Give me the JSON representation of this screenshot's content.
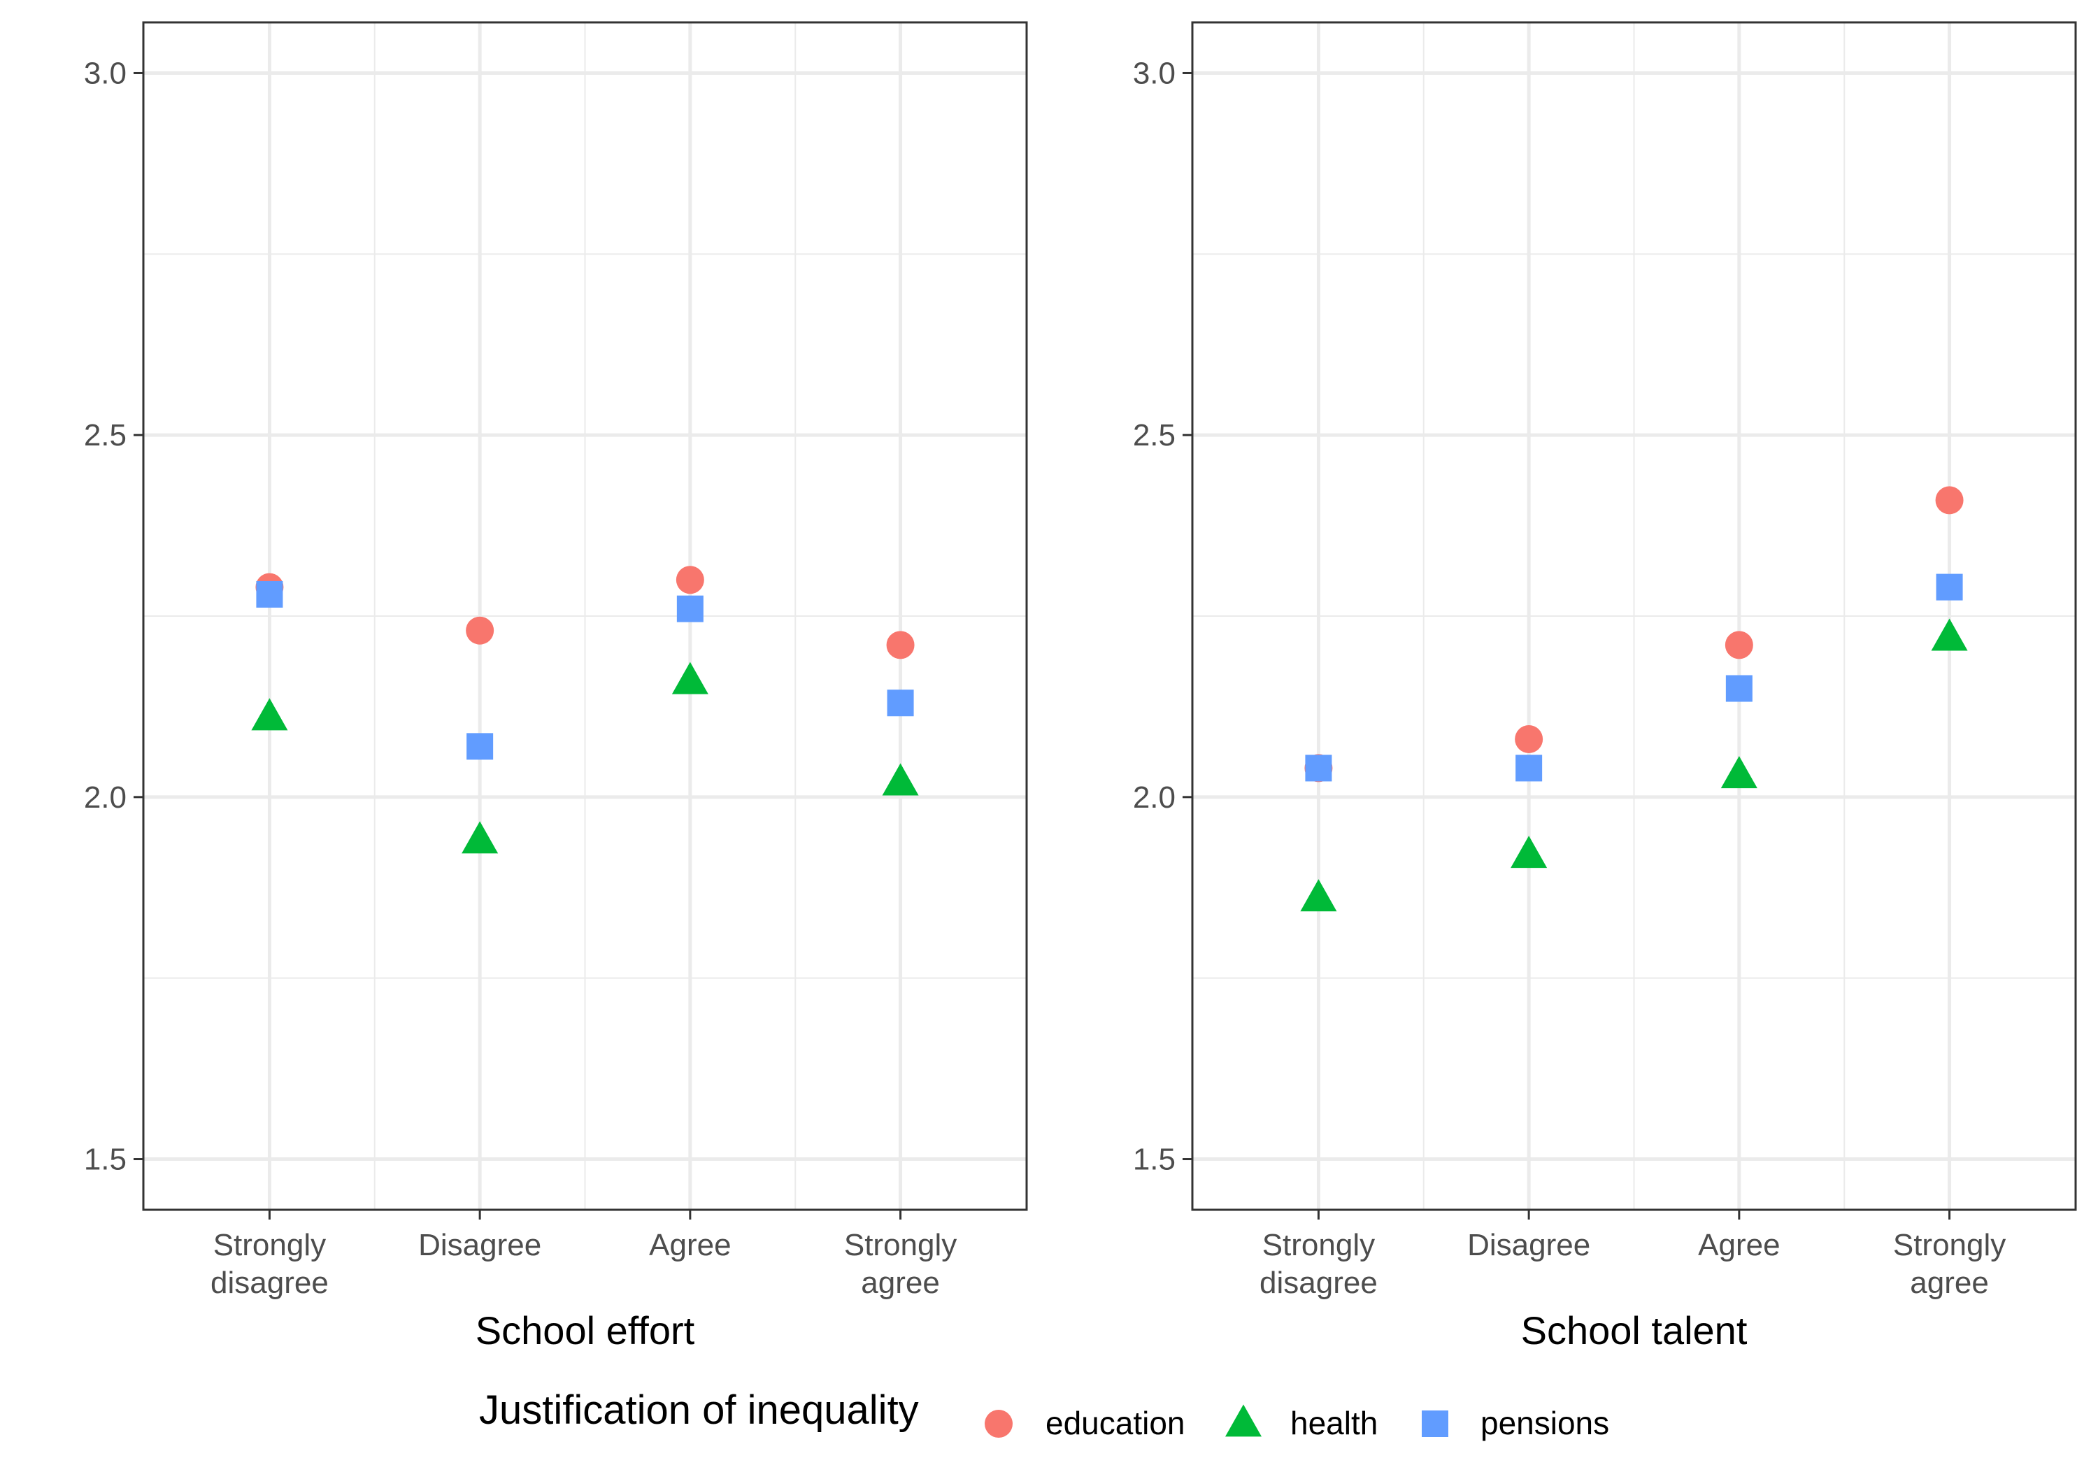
{
  "chart_data": {
    "type": "scatter",
    "legend": {
      "title": "Justification of inequality",
      "placement": "bottom",
      "items": [
        {
          "name": "education",
          "shape": "circle",
          "color": "#F8766D"
        },
        {
          "name": "health",
          "shape": "triangle",
          "color": "#00BA38"
        },
        {
          "name": "pensions",
          "shape": "square",
          "color": "#619CFF"
        }
      ]
    },
    "shared_categories": [
      [
        "Strongly",
        "disagree"
      ],
      [
        "Disagree"
      ],
      [
        "Agree"
      ],
      [
        "Strongly",
        "agree"
      ]
    ],
    "panels": [
      {
        "xlabel": "School effort",
        "ylim": [
          1.43,
          3.07
        ],
        "y_ticks": [
          "1.5",
          "2.0",
          "2.5",
          "3.0"
        ],
        "grid": true,
        "series": [
          {
            "name": "education",
            "values": [
              2.29,
              2.23,
              2.3,
              2.21
            ]
          },
          {
            "name": "health",
            "values": [
              2.11,
              1.94,
              2.16,
              2.02
            ]
          },
          {
            "name": "pensions",
            "values": [
              2.28,
              2.07,
              2.26,
              2.13
            ]
          }
        ]
      },
      {
        "xlabel": "School talent",
        "ylim": [
          1.43,
          3.07
        ],
        "y_ticks": [
          "1.5",
          "2.0",
          "2.5",
          "3.0"
        ],
        "grid": true,
        "series": [
          {
            "name": "education",
            "values": [
              2.04,
              2.08,
              2.21,
              2.41
            ]
          },
          {
            "name": "health",
            "values": [
              1.86,
              1.92,
              2.03,
              2.22
            ]
          },
          {
            "name": "pensions",
            "values": [
              2.04,
              2.04,
              2.15,
              2.29
            ]
          }
        ]
      }
    ]
  }
}
